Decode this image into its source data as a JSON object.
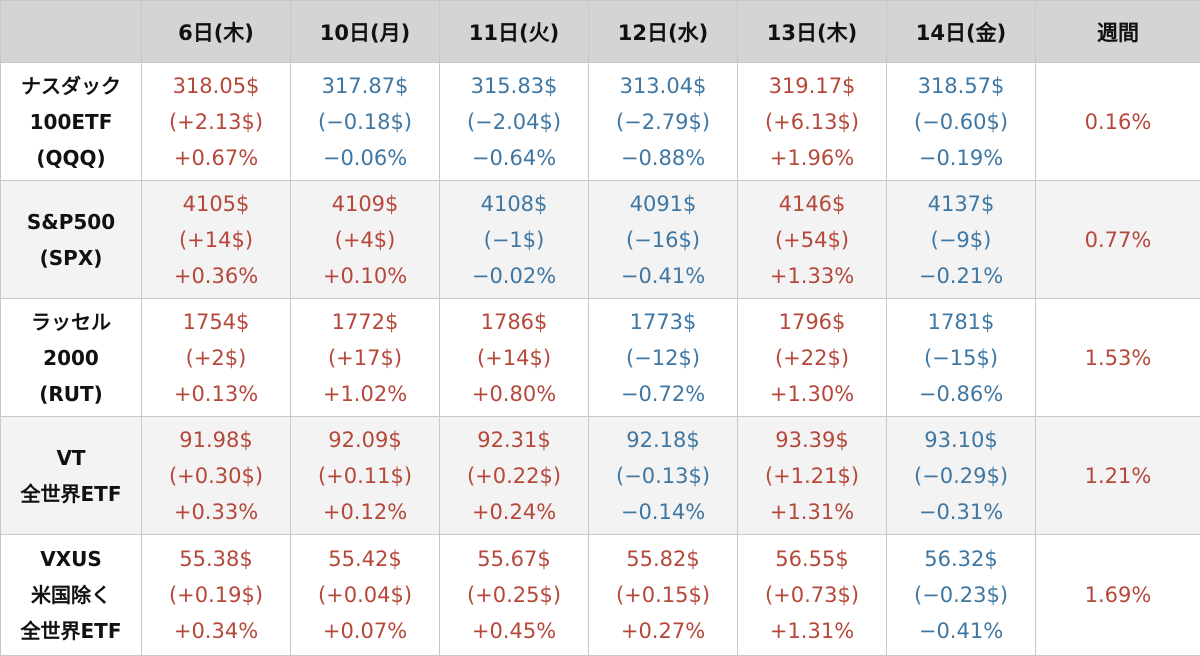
{
  "table": {
    "headers": [
      "",
      "6日(木)",
      "10日(月)",
      "11日(火)",
      "12日(水)",
      "13日(木)",
      "14日(金)",
      "週間"
    ],
    "rows": [
      {
        "label": [
          "ナスダック",
          "100ETF",
          "(QQQ)"
        ],
        "cells": [
          {
            "price": "318.05$",
            "change": "(+2.13$)",
            "pct": "+0.67%",
            "dir": "up"
          },
          {
            "price": "317.87$",
            "change": "(−0.18$)",
            "pct": "−0.06%",
            "dir": "down"
          },
          {
            "price": "315.83$",
            "change": "(−2.04$)",
            "pct": "−0.64%",
            "dir": "down"
          },
          {
            "price": "313.04$",
            "change": "(−2.79$)",
            "pct": "−0.88%",
            "dir": "down"
          },
          {
            "price": "319.17$",
            "change": "(+6.13$)",
            "pct": "+1.96%",
            "dir": "up"
          },
          {
            "price": "318.57$",
            "change": "(−0.60$)",
            "pct": "−0.19%",
            "dir": "down"
          }
        ],
        "week": "0.16%"
      },
      {
        "label": [
          "S&P500",
          "(SPX)"
        ],
        "cells": [
          {
            "price": "4105$",
            "change": "(+14$)",
            "pct": "+0.36%",
            "dir": "up"
          },
          {
            "price": "4109$",
            "change": "(+4$)",
            "pct": "+0.10%",
            "dir": "up"
          },
          {
            "price": "4108$",
            "change": "(−1$)",
            "pct": "−0.02%",
            "dir": "down"
          },
          {
            "price": "4091$",
            "change": "(−16$)",
            "pct": "−0.41%",
            "dir": "down"
          },
          {
            "price": "4146$",
            "change": "(+54$)",
            "pct": "+1.33%",
            "dir": "up"
          },
          {
            "price": "4137$",
            "change": "(−9$)",
            "pct": "−0.21%",
            "dir": "down"
          }
        ],
        "week": "0.77%"
      },
      {
        "label": [
          "ラッセル",
          "2000",
          "(RUT)"
        ],
        "cells": [
          {
            "price": "1754$",
            "change": "(+2$)",
            "pct": "+0.13%",
            "dir": "up"
          },
          {
            "price": "1772$",
            "change": "(+17$)",
            "pct": "+1.02%",
            "dir": "up"
          },
          {
            "price": "1786$",
            "change": "(+14$)",
            "pct": "+0.80%",
            "dir": "up"
          },
          {
            "price": "1773$",
            "change": "(−12$)",
            "pct": "−0.72%",
            "dir": "down"
          },
          {
            "price": "1796$",
            "change": "(+22$)",
            "pct": "+1.30%",
            "dir": "up"
          },
          {
            "price": "1781$",
            "change": "(−15$)",
            "pct": "−0.86%",
            "dir": "down"
          }
        ],
        "week": "1.53%"
      },
      {
        "label": [
          "VT",
          "全世界ETF"
        ],
        "cells": [
          {
            "price": "91.98$",
            "change": "(+0.30$)",
            "pct": "+0.33%",
            "dir": "up"
          },
          {
            "price": "92.09$",
            "change": "(+0.11$)",
            "pct": "+0.12%",
            "dir": "up"
          },
          {
            "price": "92.31$",
            "change": "(+0.22$)",
            "pct": "+0.24%",
            "dir": "up"
          },
          {
            "price": "92.18$",
            "change": "(−0.13$)",
            "pct": "−0.14%",
            "dir": "down"
          },
          {
            "price": "93.39$",
            "change": "(+1.21$)",
            "pct": "+1.31%",
            "dir": "up"
          },
          {
            "price": "93.10$",
            "change": "(−0.29$)",
            "pct": "−0.31%",
            "dir": "down"
          }
        ],
        "week": "1.21%"
      },
      {
        "label": [
          "VXUS",
          "米国除く",
          "全世界ETF"
        ],
        "cells": [
          {
            "price": "55.38$",
            "change": "(+0.19$)",
            "pct": "+0.34%",
            "dir": "up"
          },
          {
            "price": "55.42$",
            "change": "(+0.04$)",
            "pct": "+0.07%",
            "dir": "up"
          },
          {
            "price": "55.67$",
            "change": "(+0.25$)",
            "pct": "+0.45%",
            "dir": "up"
          },
          {
            "price": "55.82$",
            "change": "(+0.15$)",
            "pct": "+0.27%",
            "dir": "up"
          },
          {
            "price": "56.55$",
            "change": "(+0.73$)",
            "pct": "+1.31%",
            "dir": "up"
          },
          {
            "price": "56.32$",
            "change": "(−0.23$)",
            "pct": "−0.41%",
            "dir": "down"
          }
        ],
        "week": "1.69%"
      }
    ]
  },
  "colors": {
    "up": "#b5483b",
    "down": "#3f77a2",
    "header_bg": "#d4d4d4",
    "alt_row_bg": "#f3f3f3"
  }
}
